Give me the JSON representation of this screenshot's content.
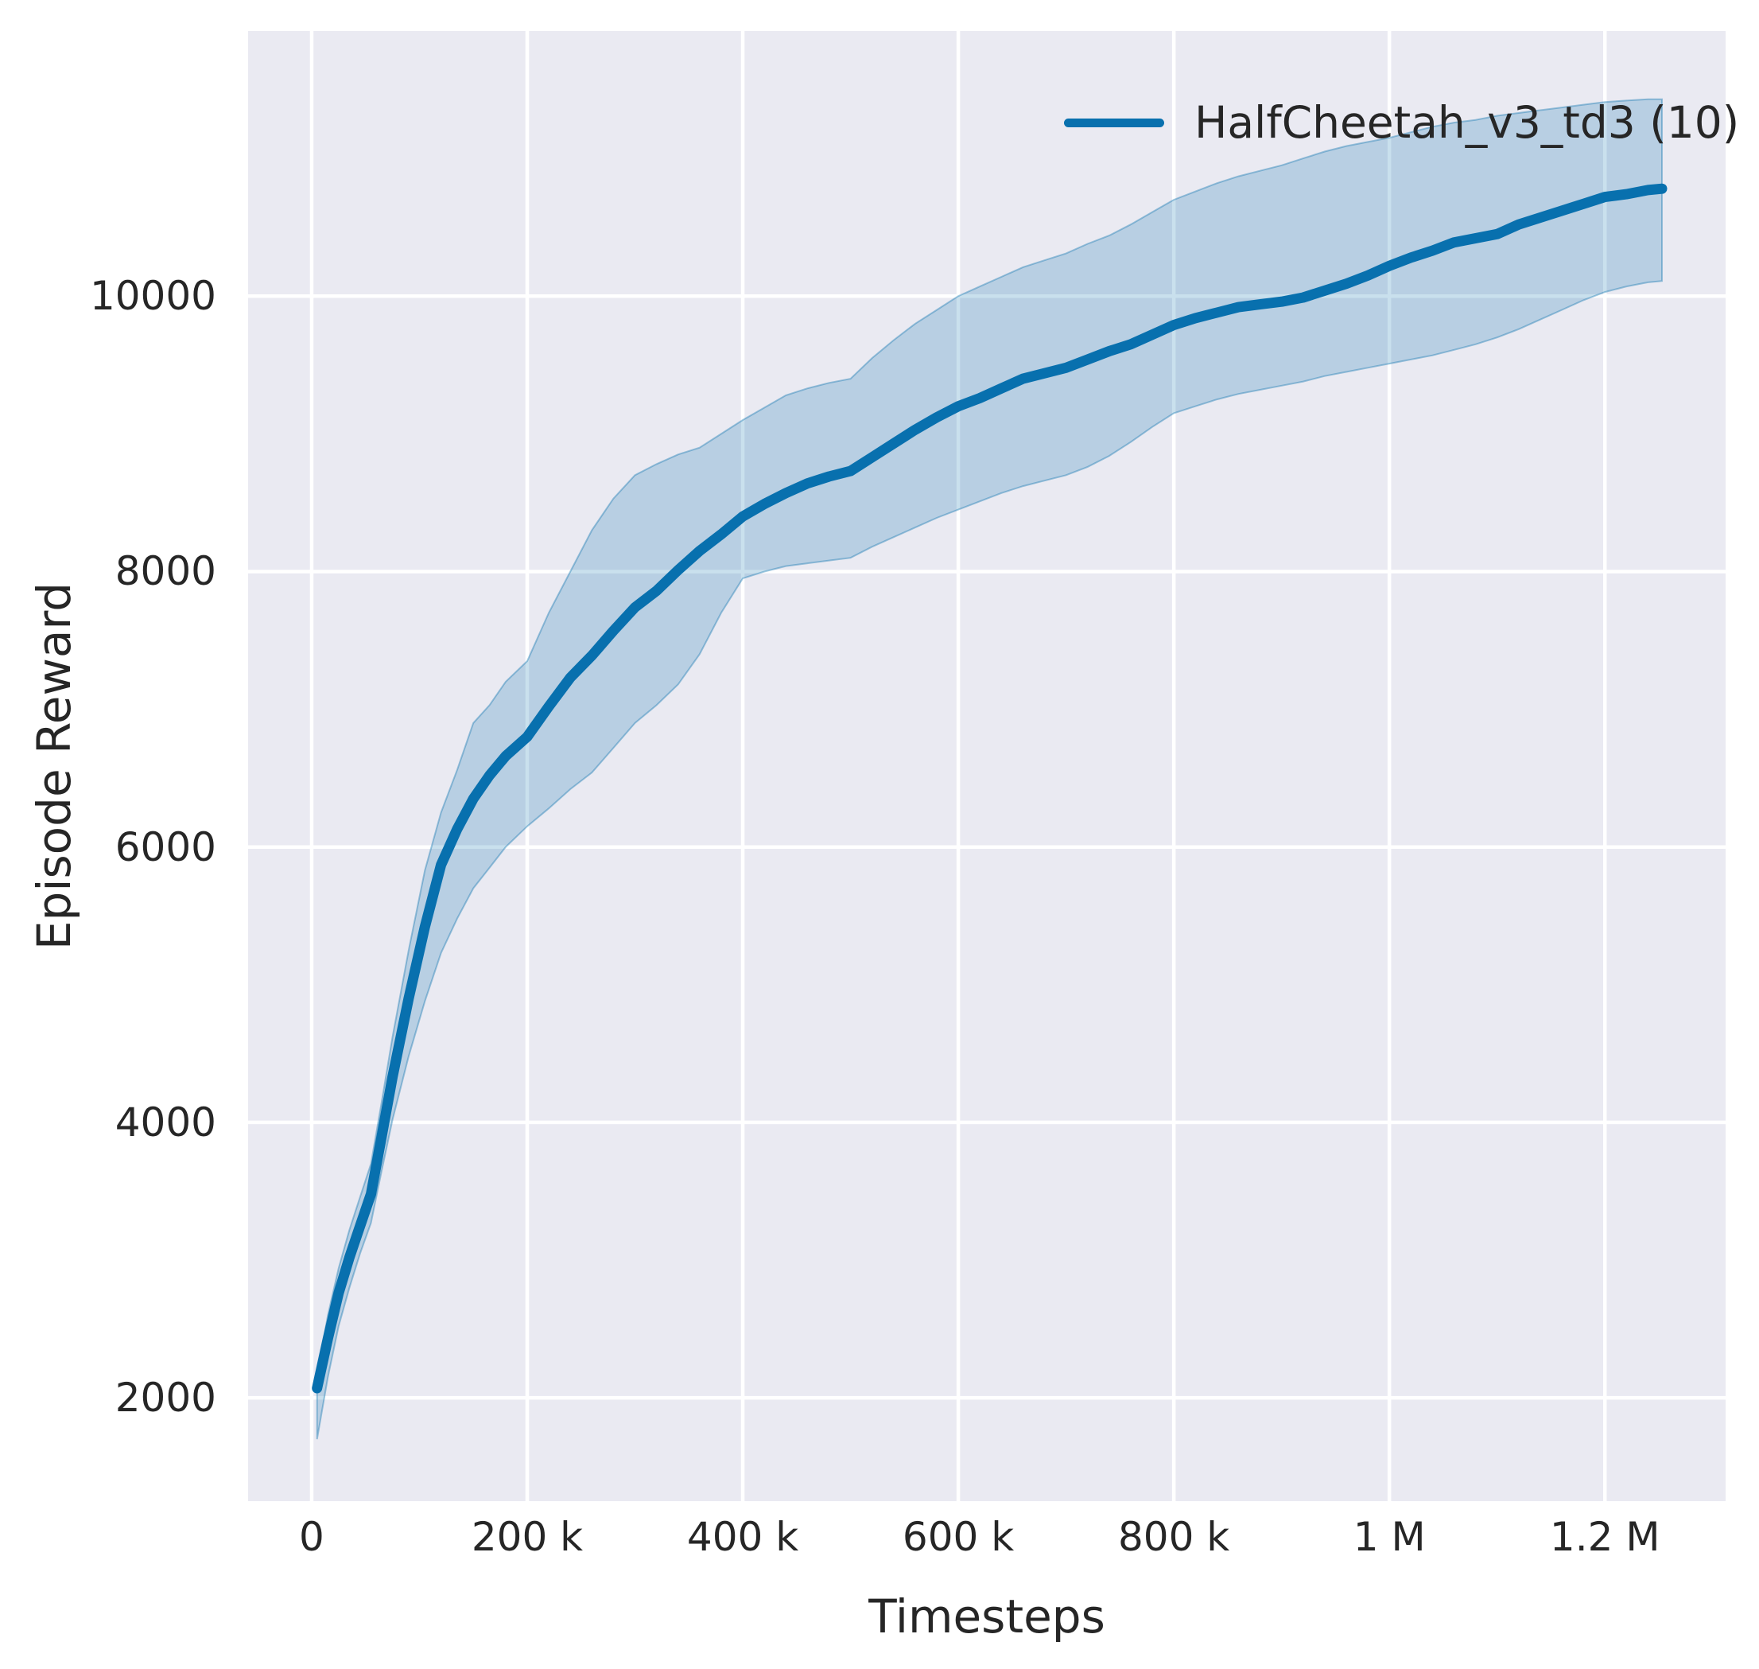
{
  "chart_data": {
    "type": "line",
    "title": "",
    "xlabel": "Timesteps",
    "ylabel": "Episode Reward",
    "grid": true,
    "legend_position": "upper right",
    "plot_background": "#eaeaf2",
    "gridline_color": "#ffffff",
    "text_color": "#262626",
    "xlim": [
      -59000,
      1312000
    ],
    "ylim": [
      1250,
      11925
    ],
    "x_ticks": [
      {
        "value": 0,
        "label": "0"
      },
      {
        "value": 200000,
        "label": "200 k"
      },
      {
        "value": 400000,
        "label": "400 k"
      },
      {
        "value": 600000,
        "label": "600 k"
      },
      {
        "value": 800000,
        "label": "800 k"
      },
      {
        "value": 1000000,
        "label": "1 M"
      },
      {
        "value": 1200000,
        "label": "1.2 M"
      }
    ],
    "y_ticks": [
      {
        "value": 2000,
        "label": "2000"
      },
      {
        "value": 4000,
        "label": "4000"
      },
      {
        "value": 6000,
        "label": "6000"
      },
      {
        "value": 8000,
        "label": "8000"
      },
      {
        "value": 10000,
        "label": "10000"
      }
    ],
    "legend": [
      {
        "label": "HalfCheetah_v3_td3 (10)",
        "color": "#0870ae"
      }
    ],
    "series": [
      {
        "name": "HalfCheetah_v3_td3 (10)",
        "color": "#0870ae",
        "band_fill_alpha": 0.22,
        "band_edge_alpha": 0.38,
        "x_timesteps": [
          5000,
          15000,
          25000,
          35000,
          45000,
          55000,
          65000,
          75000,
          90000,
          105000,
          120000,
          135000,
          150000,
          165000,
          180000,
          200000,
          220000,
          240000,
          260000,
          280000,
          300000,
          320000,
          340000,
          360000,
          380000,
          400000,
          420000,
          440000,
          460000,
          480000,
          500000,
          520000,
          540000,
          560000,
          580000,
          600000,
          620000,
          640000,
          660000,
          680000,
          700000,
          720000,
          740000,
          760000,
          780000,
          800000,
          820000,
          840000,
          860000,
          880000,
          900000,
          920000,
          940000,
          960000,
          980000,
          1000000,
          1020000,
          1040000,
          1060000,
          1080000,
          1100000,
          1120000,
          1140000,
          1160000,
          1180000,
          1200000,
          1220000,
          1240000,
          1253000
        ],
        "mean": [
          2070,
          2430,
          2760,
          3020,
          3250,
          3480,
          3900,
          4330,
          4900,
          5420,
          5870,
          6130,
          6350,
          6520,
          6660,
          6800,
          7020,
          7230,
          7390,
          7570,
          7740,
          7860,
          8010,
          8150,
          8270,
          8400,
          8490,
          8570,
          8640,
          8690,
          8730,
          8830,
          8930,
          9030,
          9120,
          9200,
          9260,
          9330,
          9400,
          9440,
          9480,
          9540,
          9600,
          9650,
          9720,
          9790,
          9840,
          9880,
          9920,
          9940,
          9960,
          9990,
          10040,
          10090,
          10150,
          10220,
          10280,
          10330,
          10390,
          10420,
          10450,
          10520,
          10570,
          10620,
          10670,
          10720,
          10740,
          10770,
          10780
        ],
        "band_low": [
          1700,
          2150,
          2520,
          2800,
          3050,
          3270,
          3650,
          4020,
          4480,
          4880,
          5230,
          5480,
          5700,
          5850,
          6000,
          6150,
          6280,
          6420,
          6540,
          6720,
          6900,
          7030,
          7180,
          7400,
          7700,
          7950,
          8000,
          8040,
          8060,
          8080,
          8100,
          8180,
          8250,
          8320,
          8390,
          8450,
          8510,
          8570,
          8620,
          8660,
          8700,
          8760,
          8840,
          8940,
          9050,
          9150,
          9200,
          9250,
          9290,
          9320,
          9350,
          9380,
          9420,
          9450,
          9480,
          9510,
          9540,
          9570,
          9610,
          9650,
          9700,
          9760,
          9830,
          9900,
          9970,
          10030,
          10070,
          10100,
          10110
        ],
        "band_high": [
          2160,
          2600,
          2940,
          3220,
          3460,
          3700,
          4150,
          4620,
          5250,
          5830,
          6250,
          6560,
          6900,
          7030,
          7200,
          7350,
          7700,
          8000,
          8300,
          8530,
          8700,
          8780,
          8850,
          8900,
          9000,
          9100,
          9190,
          9280,
          9330,
          9370,
          9400,
          9550,
          9680,
          9800,
          9900,
          10000,
          10070,
          10140,
          10210,
          10260,
          10310,
          10380,
          10440,
          10520,
          10610,
          10700,
          10760,
          10820,
          10870,
          10910,
          10950,
          11000,
          11050,
          11090,
          11120,
          11150,
          11190,
          11230,
          11260,
          11280,
          11310,
          11330,
          11350,
          11370,
          11390,
          11410,
          11420,
          11430,
          11430
        ]
      }
    ]
  }
}
